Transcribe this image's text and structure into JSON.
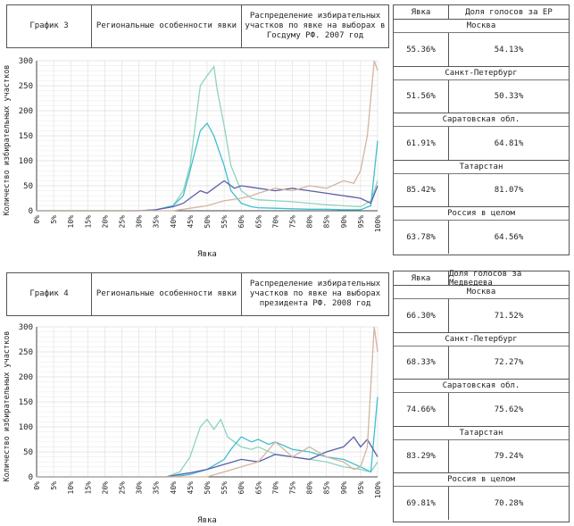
{
  "charts": [
    {
      "header": {
        "graph_label": "График 3",
        "region_label": "Региональные особенности явки",
        "description": "Распределение избирательных участков по явке на выборах в Госдуму РФ. 2007 год"
      },
      "table": {
        "col1": "Явка",
        "col2": "Доля голосов за ЕР",
        "rows": [
          {
            "region": "Москва",
            "turnout": "55.36%",
            "share": "54.13%"
          },
          {
            "region": "Санкт-Петербург",
            "turnout": "51.56%",
            "share": "50.33%"
          },
          {
            "region": "Саратовская обл.",
            "turnout": "61.91%",
            "share": "64.81%"
          },
          {
            "region": "Татарстан",
            "turnout": "85.42%",
            "share": "81.07%"
          },
          {
            "region": "Россия в целом",
            "turnout": "63.78%",
            "share": "64.56%"
          }
        ]
      }
    },
    {
      "header": {
        "graph_label": "График 4",
        "region_label": "Региональные особенности явки",
        "description": "Распределение избирательных участков по явке на выборах президента РФ. 2008 год"
      },
      "table": {
        "col1": "Явка",
        "col2": "Доля голосов за Медведева",
        "rows": [
          {
            "region": "Москва",
            "turnout": "66.30%",
            "share": "71.52%"
          },
          {
            "region": "Санкт-Петербург",
            "turnout": "68.33%",
            "share": "72.27%"
          },
          {
            "region": "Саратовская обл.",
            "turnout": "74.66%",
            "share": "75.62%"
          },
          {
            "region": "Татарстан",
            "turnout": "83.29%",
            "share": "79.24%"
          },
          {
            "region": "Россия в целом",
            "turnout": "69.81%",
            "share": "70.28%"
          }
        ]
      }
    }
  ],
  "chart_data": [
    {
      "type": "line",
      "xlabel": "Явка",
      "ylabel": "Количество избирательных участков",
      "xlim": [
        0,
        100
      ],
      "ylim": [
        0,
        300
      ],
      "yticks": [
        0,
        50,
        100,
        150,
        200,
        250,
        300
      ],
      "xticks": [
        "0%",
        "5%",
        "10%",
        "15%",
        "20%",
        "25%",
        "30%",
        "35%",
        "40%",
        "45%",
        "50%",
        "55%",
        "60%",
        "65%",
        "70%",
        "75%",
        "80%",
        "85%",
        "90%",
        "95%",
        "100%"
      ],
      "grid": true,
      "series": [
        {
          "color": "#8fd3bf",
          "x": [
            0,
            30,
            35,
            40,
            43,
            45,
            48,
            50,
            52,
            53,
            55,
            57,
            60,
            63,
            65,
            70,
            75,
            80,
            85,
            90,
            95,
            98,
            100
          ],
          "y": [
            0,
            0,
            2,
            10,
            40,
            90,
            250,
            270,
            288,
            240,
            170,
            90,
            40,
            25,
            22,
            20,
            18,
            15,
            12,
            10,
            8,
            20,
            60
          ]
        },
        {
          "color": "#3fbfcf",
          "x": [
            0,
            30,
            35,
            40,
            43,
            45,
            48,
            50,
            52,
            55,
            57,
            60,
            63,
            65,
            70,
            75,
            80,
            85,
            90,
            95,
            98,
            100
          ],
          "y": [
            0,
            0,
            2,
            10,
            30,
            80,
            160,
            175,
            150,
            90,
            40,
            15,
            8,
            6,
            5,
            4,
            3,
            3,
            2,
            2,
            10,
            140
          ]
        },
        {
          "color": "#5a5fa8",
          "x": [
            0,
            30,
            35,
            40,
            43,
            45,
            48,
            50,
            52,
            55,
            58,
            60,
            65,
            70,
            75,
            80,
            85,
            90,
            95,
            98,
            100
          ],
          "y": [
            0,
            0,
            2,
            8,
            15,
            25,
            40,
            35,
            45,
            60,
            45,
            50,
            45,
            40,
            45,
            40,
            35,
            30,
            25,
            15,
            50
          ]
        },
        {
          "color": "#d4b4a0",
          "x": [
            0,
            40,
            45,
            50,
            55,
            60,
            63,
            65,
            70,
            75,
            80,
            85,
            90,
            93,
            95,
            97,
            99,
            100
          ],
          "y": [
            0,
            0,
            5,
            10,
            20,
            25,
            30,
            35,
            45,
            40,
            50,
            45,
            60,
            55,
            80,
            150,
            300,
            280
          ]
        }
      ]
    },
    {
      "type": "line",
      "xlabel": "Явка",
      "ylabel": "Количество избирательных участков",
      "xlim": [
        0,
        100
      ],
      "ylim": [
        0,
        300
      ],
      "yticks": [
        0,
        50,
        100,
        150,
        200,
        250,
        300
      ],
      "xticks": [
        "0%",
        "5%",
        "10%",
        "15%",
        "20%",
        "25%",
        "30%",
        "35%",
        "40%",
        "45%",
        "50%",
        "55%",
        "60%",
        "65%",
        "70%",
        "75%",
        "80%",
        "85%",
        "90%",
        "95%",
        "100%"
      ],
      "grid": true,
      "series": [
        {
          "color": "#8fd3bf",
          "x": [
            0,
            38,
            42,
            45,
            48,
            50,
            52,
            54,
            56,
            58,
            60,
            63,
            65,
            70,
            75,
            80,
            85,
            90,
            95,
            98,
            100
          ],
          "y": [
            0,
            0,
            10,
            40,
            100,
            115,
            95,
            115,
            80,
            70,
            60,
            55,
            60,
            45,
            40,
            35,
            30,
            20,
            15,
            10,
            30
          ]
        },
        {
          "color": "#3fbfcf",
          "x": [
            0,
            40,
            45,
            50,
            55,
            57,
            60,
            63,
            65,
            68,
            70,
            75,
            80,
            85,
            90,
            95,
            98,
            100
          ],
          "y": [
            0,
            0,
            5,
            15,
            35,
            55,
            80,
            70,
            75,
            65,
            70,
            55,
            50,
            40,
            35,
            20,
            10,
            160
          ]
        },
        {
          "color": "#5a5fa8",
          "x": [
            0,
            38,
            42,
            45,
            50,
            55,
            60,
            65,
            70,
            75,
            80,
            85,
            90,
            93,
            95,
            97,
            100
          ],
          "y": [
            0,
            0,
            5,
            8,
            15,
            25,
            35,
            30,
            45,
            40,
            35,
            50,
            60,
            80,
            60,
            75,
            40
          ]
        },
        {
          "color": "#d4b4a0",
          "x": [
            0,
            50,
            55,
            60,
            65,
            70,
            75,
            80,
            85,
            90,
            93,
            95,
            97,
            99,
            100
          ],
          "y": [
            0,
            0,
            10,
            20,
            30,
            70,
            40,
            60,
            40,
            30,
            15,
            20,
            60,
            300,
            250
          ]
        }
      ]
    }
  ]
}
